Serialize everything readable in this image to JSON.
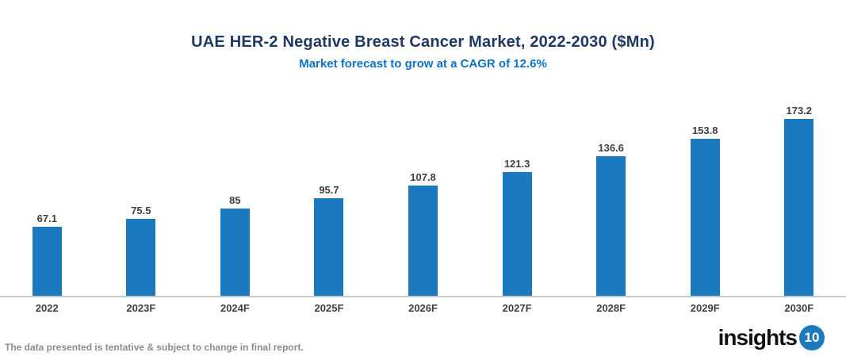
{
  "chart_data": {
    "type": "bar",
    "title": "UAE HER-2 Negative Breast Cancer Market, 2022-2030 ($Mn)",
    "subtitle": "Market forecast to grow at a CAGR of 12.6%",
    "categories": [
      "2022",
      "2023F",
      "2024F",
      "2025F",
      "2026F",
      "2027F",
      "2028F",
      "2029F",
      "2030F"
    ],
    "values": [
      67.1,
      75.5,
      85,
      95.7,
      107.8,
      121.3,
      136.6,
      153.8,
      173.2
    ],
    "xlabel": "",
    "ylabel": "",
    "ylim": [
      0,
      190
    ],
    "grid": false,
    "legend": false,
    "value_labels_shown": true
  },
  "footer": {
    "disclaimer": "The data presented is tentative & subject to change in final report."
  },
  "logo": {
    "text": "insights",
    "badge": "10"
  },
  "colors": {
    "title": "#1f3864",
    "subtitle": "#0e72c6",
    "bar": "#1b79c0",
    "axis": "#c8c8c8",
    "label": "#3f3f3f",
    "footnote": "#8c8c8c",
    "logo_badge": "#1b79c0"
  }
}
